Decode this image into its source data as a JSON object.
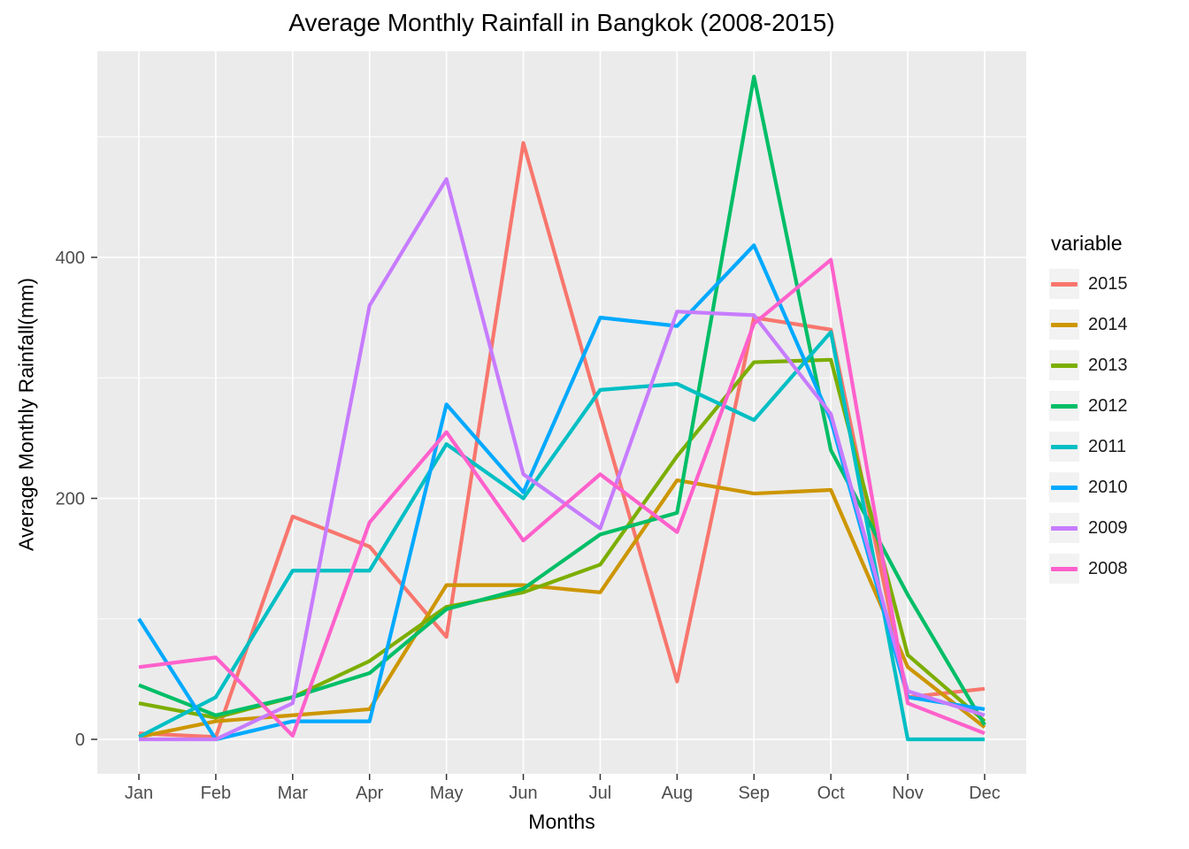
{
  "chart_data": {
    "type": "line",
    "title": "Average Monthly Rainfall in Bangkok (2008-2015)",
    "xlabel": "Months",
    "ylabel": "Average Monthly Rainfall(mm)",
    "legend_title": "variable",
    "categories": [
      "Jan",
      "Feb",
      "Mar",
      "Apr",
      "May",
      "Jun",
      "Jul",
      "Aug",
      "Sep",
      "Oct",
      "Nov",
      "Dec"
    ],
    "y_ticks": [
      0,
      200,
      400
    ],
    "y_minor_ticks": [
      100,
      300,
      500
    ],
    "ylim": [
      -28.6,
      571
    ],
    "grid": true,
    "legend_position": "right",
    "panel_bg": "#EBEBEB",
    "grid_color": "#FFFFFF",
    "tick_label_color": "#4D4D4D",
    "series": [
      {
        "name": "2015",
        "color": "#F8766D",
        "values": [
          5,
          2,
          185,
          160,
          85,
          495,
          270,
          48,
          350,
          340,
          35,
          42
        ]
      },
      {
        "name": "2014",
        "color": "#CD9600",
        "values": [
          2,
          15,
          20,
          25,
          128,
          128,
          122,
          215,
          204,
          207,
          60,
          10
        ]
      },
      {
        "name": "2013",
        "color": "#7CAE00",
        "values": [
          30,
          18,
          35,
          65,
          110,
          122,
          145,
          235,
          313,
          315,
          70,
          15
        ]
      },
      {
        "name": "2012",
        "color": "#00BE67",
        "values": [
          45,
          20,
          35,
          55,
          108,
          125,
          170,
          188,
          550,
          240,
          120,
          12
        ]
      },
      {
        "name": "2011",
        "color": "#00BFC4",
        "values": [
          2,
          35,
          140,
          140,
          245,
          200,
          290,
          295,
          265,
          338,
          0,
          0
        ]
      },
      {
        "name": "2010",
        "color": "#00A9FF",
        "values": [
          100,
          0,
          15,
          15,
          278,
          205,
          350,
          343,
          410,
          265,
          35,
          25
        ]
      },
      {
        "name": "2009",
        "color": "#C77CFF",
        "values": [
          0,
          0,
          30,
          360,
          465,
          220,
          175,
          355,
          352,
          270,
          40,
          20
        ]
      },
      {
        "name": "2008",
        "color": "#FF61CC",
        "values": [
          60,
          68,
          3,
          180,
          255,
          165,
          220,
          172,
          345,
          398,
          30,
          5
        ]
      }
    ]
  }
}
